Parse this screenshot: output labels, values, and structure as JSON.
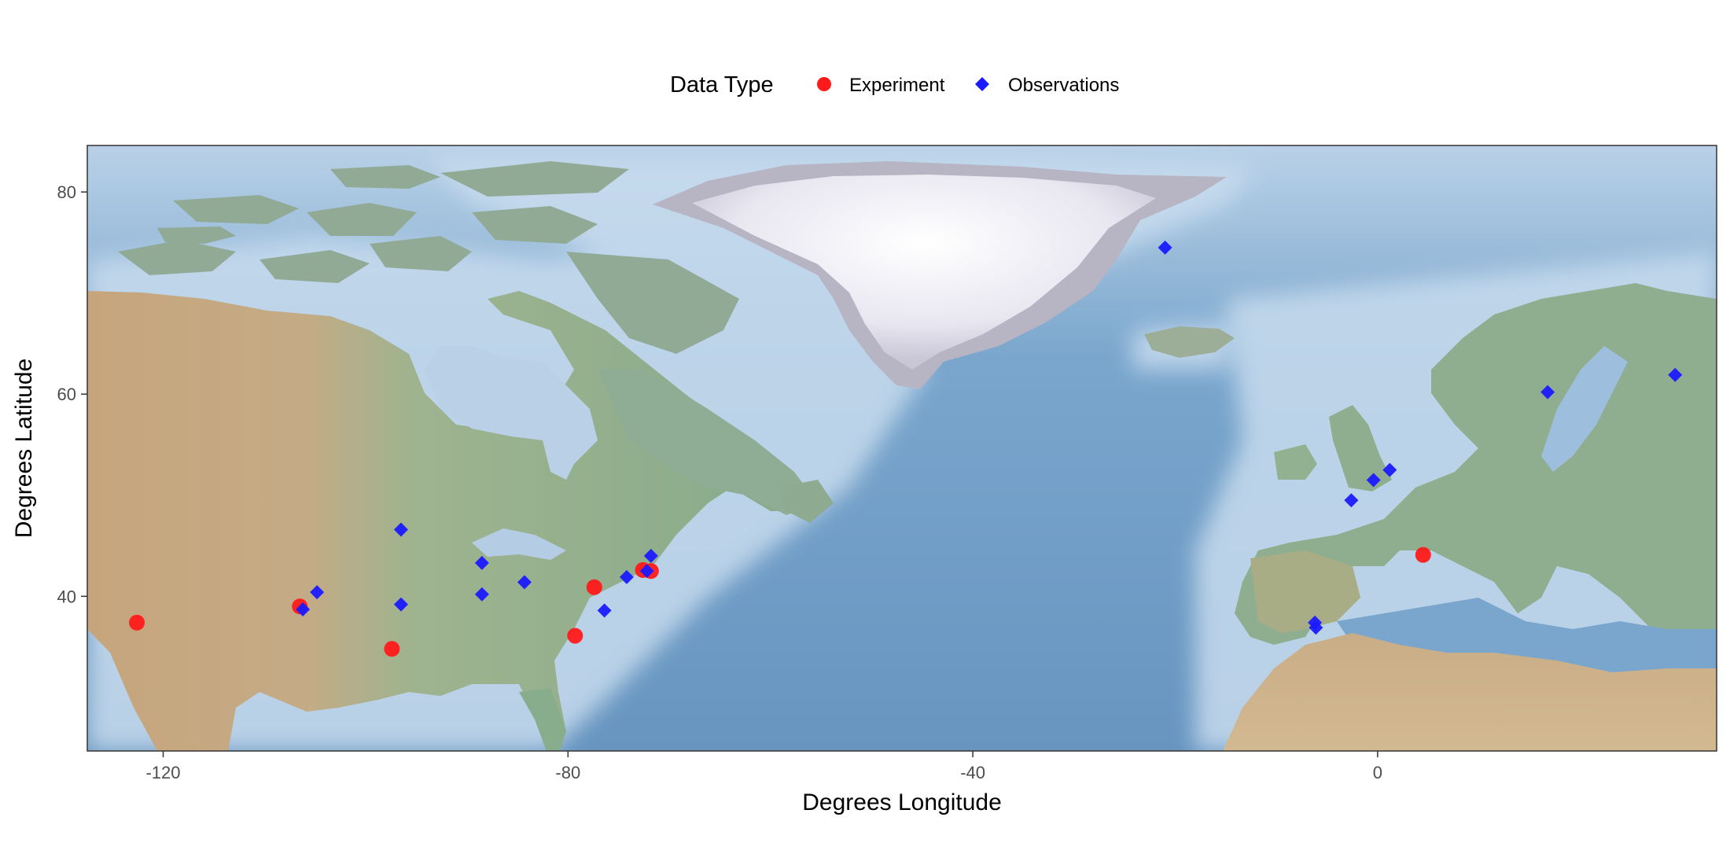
{
  "chart_data": {
    "type": "scatter",
    "xlabel": "Degrees Longitude",
    "ylabel": "Degrees Latitude",
    "xlim": [
      -127.5,
      33.5
    ],
    "ylim": [
      24.7,
      84.6
    ],
    "x_ticks": [
      -120,
      -80,
      -40,
      0
    ],
    "x_tick_labels": [
      "-120",
      "-80",
      "-40",
      "0"
    ],
    "y_ticks": [
      40,
      60,
      80
    ],
    "y_tick_labels": [
      "40",
      "60",
      "80"
    ],
    "grid": false,
    "background": "shaded-relief basemap",
    "legend": {
      "title": "Data Type",
      "position": "top"
    },
    "series": [
      {
        "name": "Experiment",
        "marker": "circle",
        "color": "#ff1a1a",
        "points": [
          {
            "x": -122.6,
            "y": 37.4
          },
          {
            "x": -106.5,
            "y": 39.0
          },
          {
            "x": -97.4,
            "y": 34.8
          },
          {
            "x": -79.3,
            "y": 36.1
          },
          {
            "x": -77.4,
            "y": 40.9
          },
          {
            "x": -72.6,
            "y": 42.6
          },
          {
            "x": -71.8,
            "y": 42.5
          },
          {
            "x": 4.5,
            "y": 44.1
          }
        ]
      },
      {
        "name": "Observations",
        "marker": "diamond",
        "color": "#1a1aff",
        "points": [
          {
            "x": -21.0,
            "y": 74.5
          },
          {
            "x": -96.5,
            "y": 46.6
          },
          {
            "x": -88.5,
            "y": 43.3
          },
          {
            "x": -84.3,
            "y": 41.4
          },
          {
            "x": -88.5,
            "y": 40.2
          },
          {
            "x": -96.5,
            "y": 39.2
          },
          {
            "x": -104.8,
            "y": 40.4
          },
          {
            "x": -106.2,
            "y": 38.7
          },
          {
            "x": -76.4,
            "y": 38.6
          },
          {
            "x": -74.2,
            "y": 41.9
          },
          {
            "x": -71.8,
            "y": 44.0
          },
          {
            "x": -72.2,
            "y": 42.5
          },
          {
            "x": -6.2,
            "y": 37.4
          },
          {
            "x": -6.1,
            "y": 36.9
          },
          {
            "x": -2.6,
            "y": 49.5
          },
          {
            "x": -0.4,
            "y": 51.5
          },
          {
            "x": 1.2,
            "y": 52.5
          },
          {
            "x": 16.8,
            "y": 60.2
          },
          {
            "x": 29.4,
            "y": 61.9
          }
        ]
      }
    ]
  },
  "colors": {
    "ocean": "#6f9fc6",
    "shallow": "#c9dcec",
    "land": "#8fb094",
    "arid": "#c9ad85",
    "ice": "#eceaf2"
  }
}
